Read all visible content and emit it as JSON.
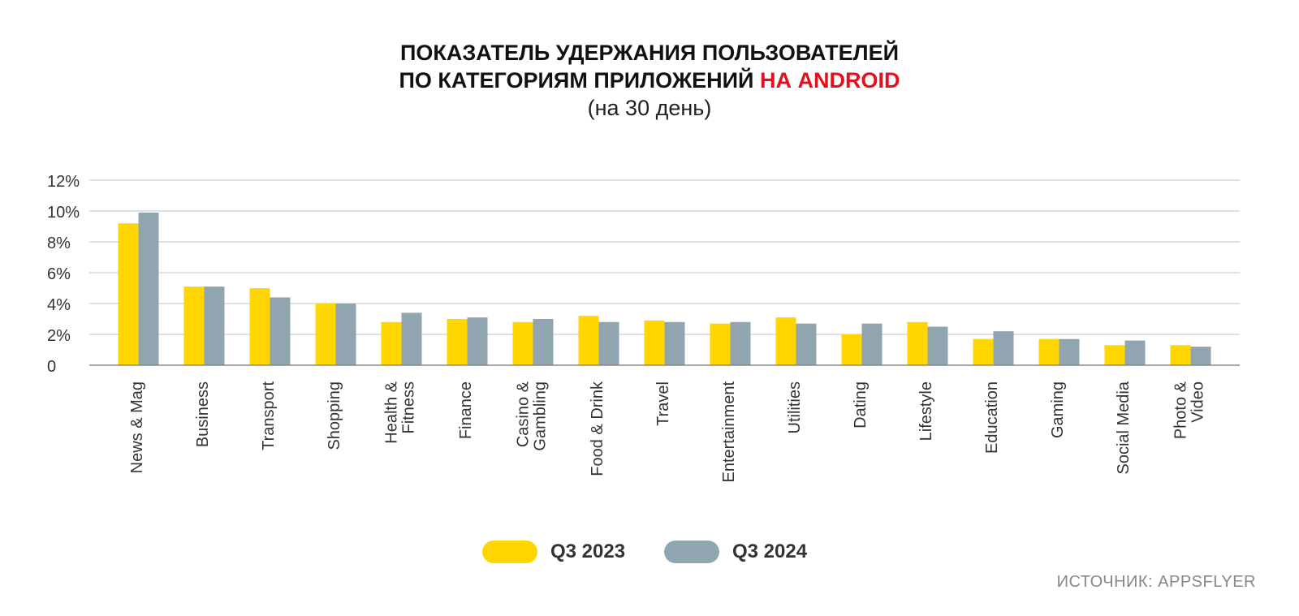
{
  "title": {
    "line1": "ПОКАЗАТЕЛЬ УДЕРЖАНИЯ ПОЛЬЗОВАТЕЛЕЙ",
    "line2_main": "ПО КАТЕГОРИЯМ ПРИЛОЖЕНИЙ ",
    "line2_accent": "НА ANDROID",
    "subtitle": "(на 30 день)"
  },
  "source": "ИСТОЧНИК: APPSFLYER",
  "colors": {
    "q3_2023": "#ffd600",
    "q3_2024": "#91a5b1",
    "accent": "#e3101e",
    "grid": "#b8c7cc",
    "axis": "#888888"
  },
  "chart_data": {
    "type": "bar",
    "title": "ПОКАЗАТЕЛЬ УДЕРЖАНИЯ ПОЛЬЗОВАТЕЛЕЙ ПО КАТЕГОРИЯМ ПРИЛОЖЕНИЙ НА ANDROID (на 30 день)",
    "xlabel": "",
    "ylabel": "",
    "ylim": [
      0,
      12
    ],
    "yticks": [
      0,
      2,
      4,
      6,
      8,
      10,
      12
    ],
    "ytick_labels": [
      "0",
      "2%",
      "4%",
      "6%",
      "8%",
      "10%",
      "12%"
    ],
    "grid": true,
    "legend_position": "bottom-center",
    "categories": [
      [
        "News & Mag"
      ],
      [
        "Business"
      ],
      [
        "Transport"
      ],
      [
        "Shopping"
      ],
      [
        "Health &",
        "Fitness"
      ],
      [
        "Finance"
      ],
      [
        "Casino &",
        "Gambling"
      ],
      [
        "Food & Drink"
      ],
      [
        "Travel"
      ],
      [
        "Entertainment"
      ],
      [
        "Utilities"
      ],
      [
        "Dating"
      ],
      [
        "Lifestyle"
      ],
      [
        "Education"
      ],
      [
        "Gaming"
      ],
      [
        "Social Media"
      ],
      [
        "Photo &",
        "Video"
      ]
    ],
    "series": [
      {
        "name": "Q3 2023",
        "color": "#ffd600",
        "values": [
          9.2,
          5.1,
          5.0,
          4.0,
          2.8,
          3.0,
          2.8,
          3.2,
          2.9,
          2.7,
          3.1,
          2.0,
          2.8,
          1.7,
          1.7,
          1.3,
          1.3
        ]
      },
      {
        "name": "Q3 2024",
        "color": "#91a5b1",
        "values": [
          9.9,
          5.1,
          4.4,
          4.0,
          3.4,
          3.1,
          3.0,
          2.8,
          2.8,
          2.8,
          2.7,
          2.7,
          2.5,
          2.2,
          1.7,
          1.6,
          1.2
        ]
      }
    ]
  }
}
